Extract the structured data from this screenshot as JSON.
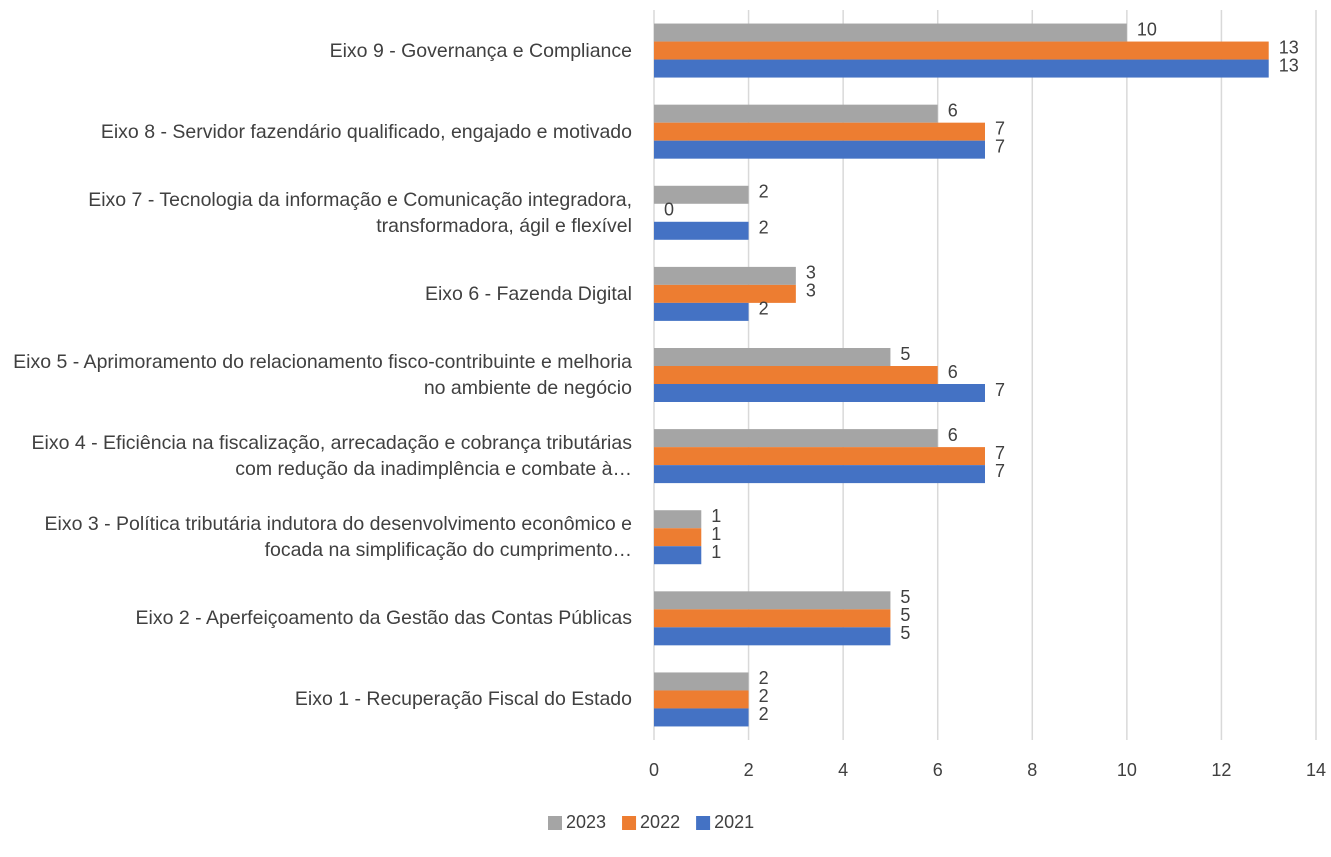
{
  "chart_data": {
    "type": "bar",
    "orientation": "horizontal",
    "categories": [
      "Eixo 1 - Recuperação Fiscal do Estado",
      "Eixo 2 - Aperfeiçoamento da Gestão das Contas Públicas",
      "Eixo 3 - Política tributária indutora do desenvolvimento econômico e focada na simplificação do cumprimento…",
      "Eixo 4 - Eficiência na fiscalização, arrecadação e cobrança tributárias com redução da inadimplência e combate à…",
      "Eixo 5 - Aprimoramento do relacionamento fisco-contribuinte e melhoria no ambiente de negócio",
      "Eixo 6 - Fazenda Digital",
      "Eixo 7 - Tecnologia da informação e Comunicação integradora, transformadora, ágil e flexível",
      "Eixo 8 - Servidor fazendário qualificado, engajado e motivado",
      "Eixo 9 - Governança e Compliance"
    ],
    "series": [
      {
        "name": "2023",
        "color": "#a5a5a5",
        "values": [
          2,
          5,
          1,
          6,
          5,
          3,
          2,
          6,
          10
        ]
      },
      {
        "name": "2022",
        "color": "#ed7d31",
        "values": [
          2,
          5,
          1,
          7,
          6,
          3,
          0,
          7,
          13
        ]
      },
      {
        "name": "2021",
        "color": "#4472c4",
        "values": [
          2,
          5,
          1,
          7,
          7,
          2,
          2,
          7,
          13
        ]
      }
    ],
    "xlim": [
      0,
      14
    ],
    "xticks": [
      0,
      2,
      4,
      6,
      8,
      10,
      12,
      14
    ],
    "grid": true,
    "legend": "bottom"
  }
}
